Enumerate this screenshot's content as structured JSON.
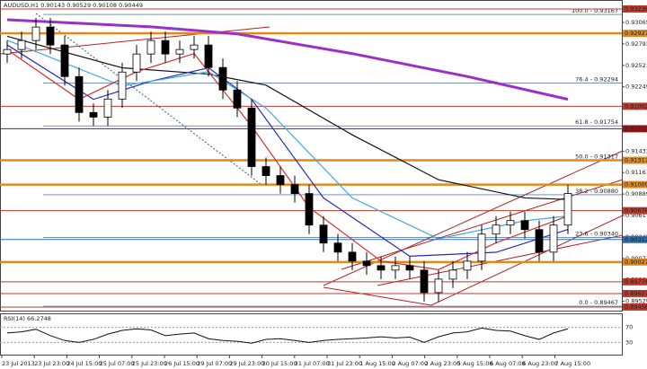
{
  "chart_data": {
    "type": "candlestick",
    "title": "AUDUSD,H1  0.90143 0.90529 0.90108 0.90449",
    "categories": [
      "23 Jul 2013",
      "23 Jul 23:00",
      "24 Jul 15:00",
      "25 Jul 07:00",
      "25 Jul 23:00",
      "26 Jul 15:00",
      "29 Jul 07:00",
      "29 Jul 23:00",
      "30 Jul 15:00",
      "31 Jul 07:00",
      "31 Jul 23:00",
      "1 Aug 15:00",
      "2 Aug 07:00",
      "2 Aug 23:00",
      "5 Aug 15:00",
      "6 Aug 07:00",
      "6 Aug 23:00",
      "7 Aug 15:00"
    ],
    "open": [
      0.92665,
      0.92722,
      0.92836,
      0.93007,
      0.92779,
      0.92379,
      0.91923,
      0.91865,
      0.92094,
      0.92436,
      0.92665,
      0.92836,
      0.92665,
      0.92722,
      0.92779,
      0.92494,
      0.92208,
      0.9198,
      0.91237,
      0.91123,
      0.91009,
      0.90895,
      0.90495,
      0.90267,
      0.90152,
      0.90038,
      0.89981,
      0.89924,
      0.89981,
      0.89924,
      0.89639,
      0.8981,
      0.89924,
      0.90038,
      0.90381,
      0.90495,
      0.90552,
      0.90438,
      0.90152,
      0.90495
    ],
    "high": [
      0.92836,
      0.9295,
      0.93122,
      0.93122,
      0.92893,
      0.92494,
      0.92037,
      0.92208,
      0.92551,
      0.92779,
      0.9295,
      0.9295,
      0.92836,
      0.92893,
      0.92893,
      0.92608,
      0.92322,
      0.92094,
      0.91352,
      0.91237,
      0.91123,
      0.91009,
      0.90609,
      0.90381,
      0.90267,
      0.90152,
      0.90095,
      0.90095,
      0.90095,
      0.90038,
      0.89924,
      0.90038,
      0.90152,
      0.90495,
      0.90609,
      0.90666,
      0.90666,
      0.90552,
      0.90609,
      0.91009
    ],
    "low": [
      0.92551,
      0.92608,
      0.92722,
      0.92665,
      0.92265,
      0.91808,
      0.91751,
      0.91751,
      0.9198,
      0.92322,
      0.92551,
      0.92551,
      0.92551,
      0.92608,
      0.92379,
      0.92094,
      0.91865,
      0.91123,
      0.91009,
      0.90895,
      0.90781,
      0.90381,
      0.90152,
      0.90038,
      0.89924,
      0.89867,
      0.8981,
      0.8981,
      0.8981,
      0.89525,
      0.89525,
      0.89696,
      0.8981,
      0.89924,
      0.90267,
      0.90381,
      0.90324,
      0.90038,
      0.90038,
      0.90381
    ],
    "close": [
      0.92722,
      0.92836,
      0.93007,
      0.92779,
      0.92379,
      0.91923,
      0.91865,
      0.92094,
      0.92436,
      0.92665,
      0.92836,
      0.92665,
      0.92722,
      0.92779,
      0.92494,
      0.92208,
      0.9198,
      0.91237,
      0.91123,
      0.91009,
      0.90895,
      0.90495,
      0.90267,
      0.90152,
      0.90038,
      0.89981,
      0.89924,
      0.89981,
      0.89924,
      0.89639,
      0.8981,
      0.89924,
      0.90038,
      0.90381,
      0.90495,
      0.90552,
      0.90438,
      0.90152,
      0.90495,
      0.90895
    ],
    "ylim": [
      0.8941,
      0.9335
    ],
    "yticks": [
      0.93065,
      0.92793,
      0.92521,
      0.92249,
      0.91977,
      0.91705,
      0.91433,
      0.91161,
      0.90889,
      0.90617,
      0.90345,
      0.90073,
      0.89801,
      0.89529
    ],
    "grid": false,
    "levels": [
      {
        "value": 0.93236,
        "color": "#c0392b"
      },
      {
        "value": 0.92927,
        "color": "#e08a1e"
      },
      {
        "value": 0.92002,
        "color": "#c0392b"
      },
      {
        "value": 0.91717,
        "color": "#8b1a1a"
      },
      {
        "value": 0.91317,
        "color": "#e08a1e"
      },
      {
        "value": 0.91009,
        "color": "#e08a1e"
      },
      {
        "value": 0.90678,
        "color": "#c0392b"
      },
      {
        "value": 0.90312,
        "color": "#2e6db4"
      },
      {
        "value": 0.90027,
        "color": "#e08a1e"
      },
      {
        "value": 0.89776,
        "color": "#c0392b"
      },
      {
        "value": 0.89627,
        "color": "#c0392b"
      },
      {
        "value": 0.89456,
        "color": "#c0392b"
      }
    ],
    "fib": [
      {
        "value": 0.93167,
        "label": "100.0 - 0.93167"
      },
      {
        "value": 0.92294,
        "label": "76.4 - 0.92294"
      },
      {
        "value": 0.91754,
        "label": "61.8 - 0.91754"
      },
      {
        "value": 0.91317,
        "label": "50.0 - 0.91317"
      },
      {
        "value": 0.9088,
        "label": "38.2 - 0.90880"
      },
      {
        "value": 0.9034,
        "label": "23.6 - 0.90340"
      },
      {
        "value": 0.89467,
        "label": "0.0 - 0.89467"
      }
    ],
    "moving_averages": [
      {
        "color": "#9b30c8",
        "width": 3,
        "x": [
          0,
          10,
          16,
          24,
          32,
          39
        ],
        "values": [
          0.931,
          0.9301,
          0.9292,
          0.9267,
          0.9238,
          0.9209
        ]
      },
      {
        "color": "#111111",
        "width": 1.2,
        "x": [
          0,
          8,
          14,
          18,
          24,
          30,
          36,
          39
        ],
        "values": [
          0.9289,
          0.9249,
          0.9241,
          0.9227,
          0.9164,
          0.9107,
          0.9084,
          0.9082
        ]
      },
      {
        "color": "#2a2ab8",
        "width": 1.2,
        "x": [
          0,
          6,
          10,
          14,
          17,
          22,
          28,
          34,
          39
        ],
        "values": [
          0.9278,
          0.9209,
          0.9232,
          0.9249,
          0.9209,
          0.9084,
          0.901,
          0.9015,
          0.9044
        ]
      },
      {
        "color": "#3fa9e0",
        "width": 1.2,
        "x": [
          0,
          8,
          14,
          18,
          24,
          30,
          36,
          39
        ],
        "values": [
          0.9284,
          0.9226,
          0.9244,
          0.9198,
          0.9084,
          0.9032,
          0.9055,
          0.9061
        ]
      },
      {
        "color": "#d0312d",
        "width": 1.2,
        "x": [
          0,
          5,
          9,
          13,
          17,
          21,
          26,
          30,
          34,
          39
        ],
        "values": [
          0.9272,
          0.9209,
          0.9244,
          0.9267,
          0.9175,
          0.9072,
          0.9004,
          0.8993,
          0.9027,
          0.9061
        ]
      }
    ],
    "rsi": {
      "label": "RSI(14) 66.2748",
      "ylim": [
        0,
        100
      ],
      "yticks": [
        70,
        30
      ],
      "values": [
        55,
        58,
        65,
        48,
        35,
        30,
        38,
        52,
        62,
        66,
        63,
        48,
        52,
        55,
        40,
        35,
        33,
        28,
        38,
        40,
        35,
        30,
        35,
        38,
        40,
        42,
        45,
        42,
        44,
        30,
        45,
        55,
        58,
        68,
        62,
        60,
        48,
        38,
        55,
        66
      ]
    }
  }
}
